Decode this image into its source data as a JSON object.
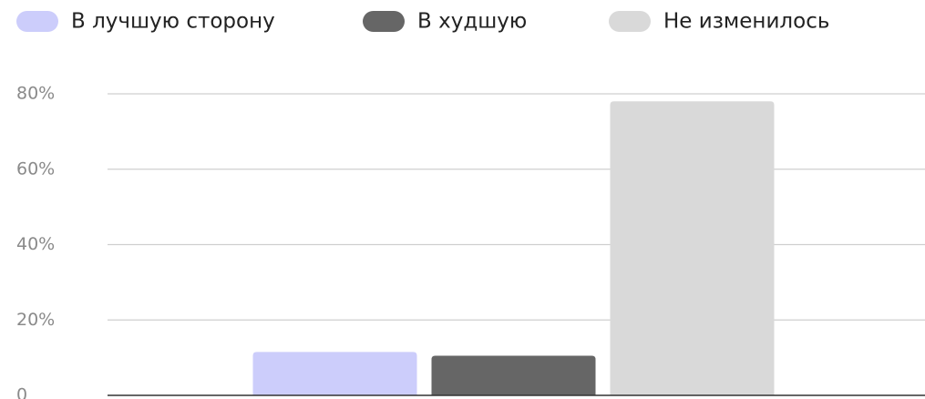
{
  "chart_data": {
    "type": "bar",
    "categories": [
      null
    ],
    "series": [
      {
        "name": "В лучшую сторону",
        "color": "#cccdfb",
        "values": [
          11.5
        ]
      },
      {
        "name": "В худшую",
        "color": "#666666",
        "values": [
          10.5
        ]
      },
      {
        "name": "Не изменилось",
        "color": "#d9d9d9",
        "values": [
          78
        ]
      }
    ],
    "ylim": [
      0,
      80
    ],
    "yticks": [
      0,
      {
        "value": 20,
        "label": "20%"
      },
      {
        "value": 40,
        "label": "40%"
      },
      {
        "value": 60,
        "label": "60%"
      },
      {
        "value": 80,
        "label": "80%"
      }
    ],
    "grid": true,
    "legend": "top"
  }
}
